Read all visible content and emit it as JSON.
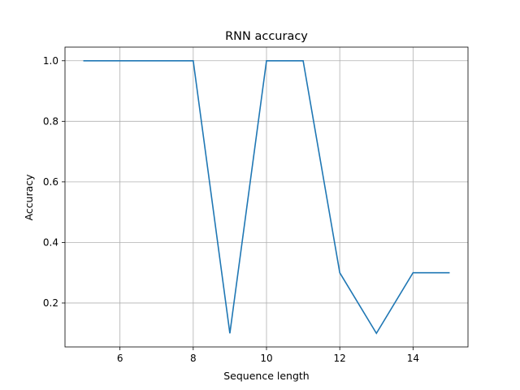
{
  "chart_data": {
    "type": "line",
    "title": "RNN accuracy",
    "xlabel": "Sequence length",
    "ylabel": "Accuracy",
    "xlim": [
      4.5,
      15.5
    ],
    "ylim": [
      0.055,
      1.045
    ],
    "xticks": [
      6,
      8,
      10,
      12,
      14
    ],
    "xtick_labels": [
      "6",
      "8",
      "10",
      "12",
      "14"
    ],
    "yticks": [
      0.2,
      0.4,
      0.6,
      0.8,
      1.0
    ],
    "ytick_labels": [
      "0.2",
      "0.4",
      "0.6",
      "0.8",
      "1.0"
    ],
    "grid": true,
    "legend": null,
    "series": [
      {
        "color": "#1f77b4",
        "x": [
          5,
          6,
          7,
          8,
          9,
          10,
          11,
          12,
          13,
          14,
          15
        ],
        "y": [
          1.0,
          1.0,
          1.0,
          1.0,
          0.1,
          1.0,
          1.0,
          0.3,
          0.1,
          0.3,
          0.3
        ]
      }
    ]
  }
}
